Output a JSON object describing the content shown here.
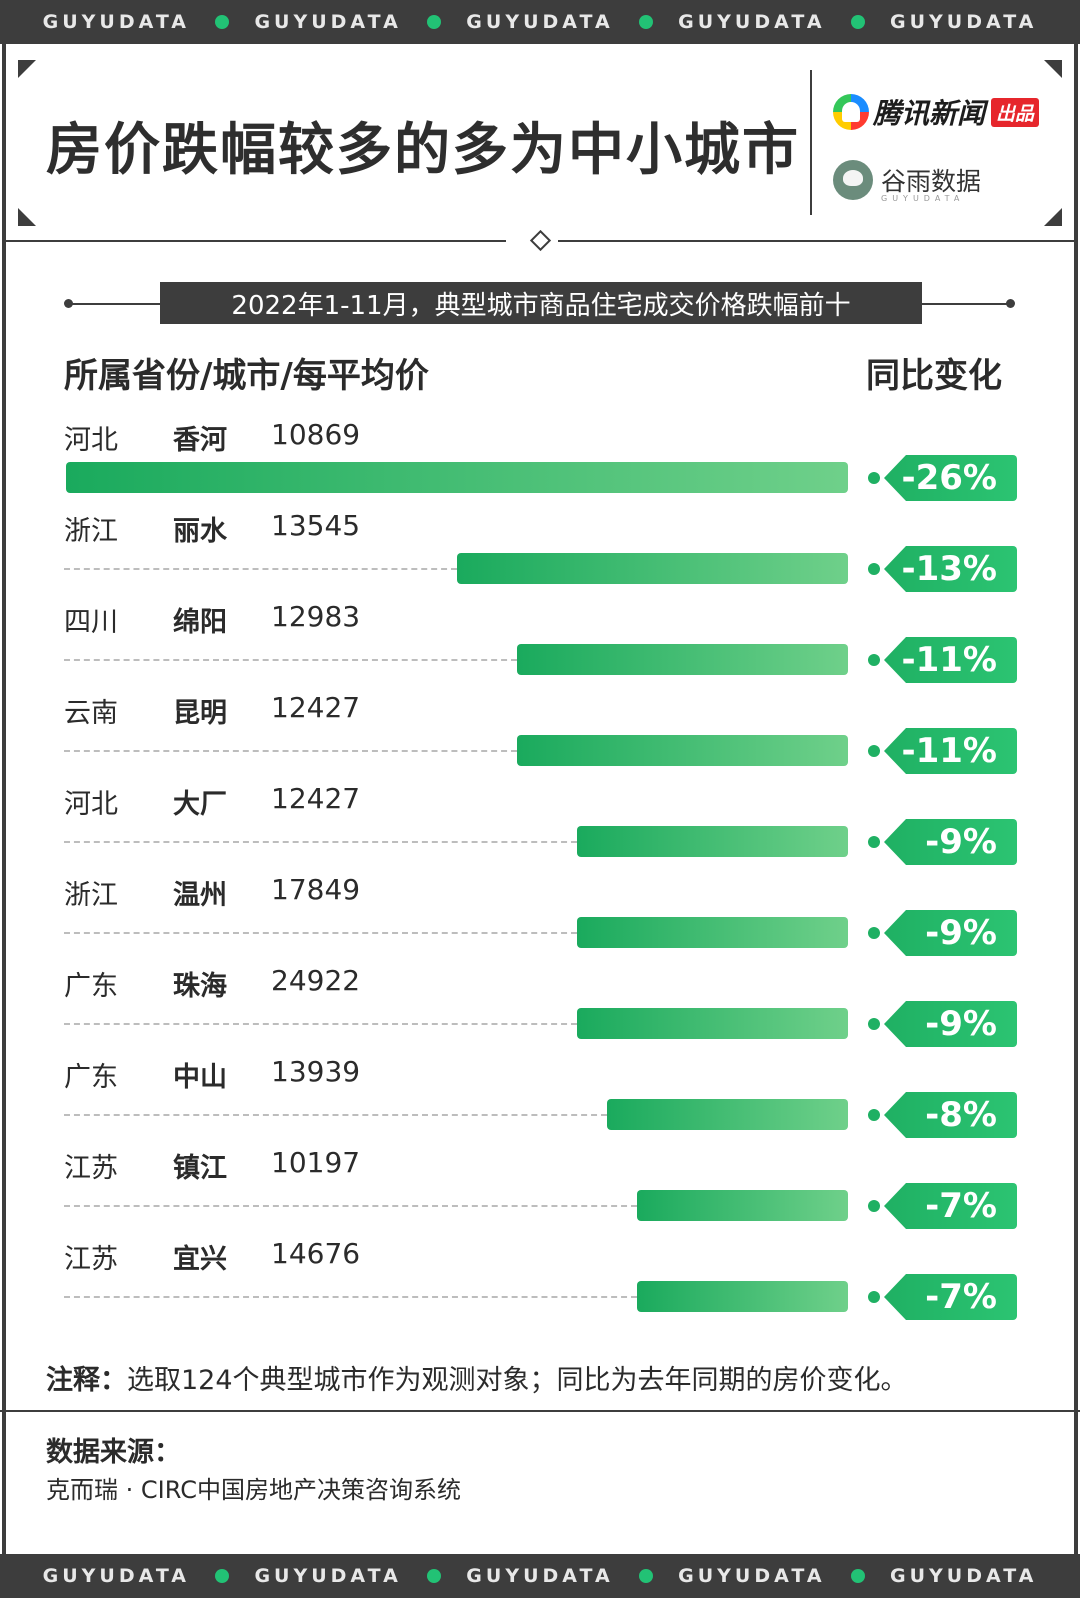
{
  "band_text": "GUYUDATA",
  "title": "房价跌幅较多的多为中小城市",
  "brands": {
    "tencent_name": "腾讯新闻",
    "tencent_tag": "出品",
    "guyu_name": "谷雨数据",
    "guyu_sub": "GUYUDATA"
  },
  "subtitle": "2022年1-11月，典型城市商品住宅成交价格跌幅前十",
  "columns": {
    "left": "所属省份/城市/每平均价",
    "right": "同比变化"
  },
  "chart_data": {
    "type": "bar",
    "title": "2022年1-11月，典型城市商品住宅成交价格跌幅前十",
    "unit": "%",
    "categories": [
      "香河",
      "丽水",
      "绵阳",
      "昆明",
      "大厂",
      "温州",
      "珠海",
      "中山",
      "镇江",
      "宜兴"
    ],
    "provinces": [
      "河北",
      "浙江",
      "四川",
      "云南",
      "河北",
      "浙江",
      "广东",
      "广东",
      "江苏",
      "江苏"
    ],
    "prices": [
      "10869",
      "13545",
      "12983",
      "12427",
      "12427",
      "17849",
      "24922",
      "13939",
      "10197",
      "14676"
    ],
    "values": [
      -26,
      -13,
      -11,
      -11,
      -9,
      -9,
      -9,
      -8,
      -7,
      -7
    ],
    "value_labels": [
      "-26%",
      "-13%",
      "-11%",
      "-11%",
      "-9%",
      "-9%",
      "-9%",
      "-8%",
      "-7%",
      "-7%"
    ],
    "colors": {
      "bar_start": "#1aaa5d",
      "bar_end": "#6fd08a",
      "label_bg": "#1fb063",
      "dark": "#3d3d3d"
    }
  },
  "note": {
    "label": "注释：",
    "text": "选取124个典型城市作为观测对象；同比为去年同期的房价变化。"
  },
  "source": {
    "title": "数据来源：",
    "text": "克而瑞 · CIRC中国房地产决策咨询系统"
  }
}
